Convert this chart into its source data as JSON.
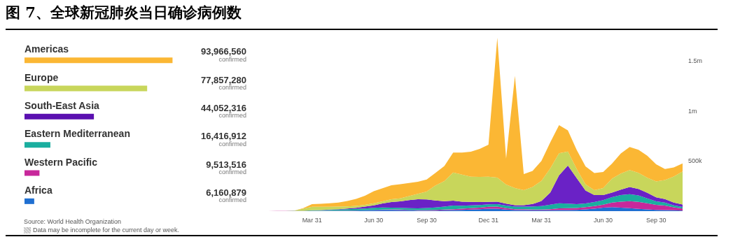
{
  "chart_data": [
    {
      "type": "bar",
      "title": "图 7、全球新冠肺炎当日确诊病例数",
      "orientation": "horizontal",
      "categories": [
        "Americas",
        "Europe",
        "South-East Asia",
        "Eastern Mediterranean",
        "Western Pacific",
        "Africa"
      ],
      "values": [
        93966560,
        77857280,
        44052316,
        16416912,
        9513516,
        6160879
      ],
      "colors": [
        "#fbb734",
        "#c8d65b",
        "#5a10b0",
        "#1aae9f",
        "#c7289b",
        "#1f6fd1"
      ],
      "value_labels": [
        "93,966,560\nconfirmed",
        "77,857,280\nconfirmed",
        "44,052,316\nconfirmed",
        "16,416,912\nconfirmed",
        "9,513,516\nconfirmed",
        "6,160,879\nconfirmed"
      ],
      "annotations": [
        "Source: World Health Organization",
        "Data may be incomplete for the current day or week."
      ]
    },
    {
      "type": "area",
      "stacked": true,
      "categories": [
        null,
        null,
        null,
        null,
        null,
        null,
        "Mar 31",
        null,
        null,
        null,
        null,
        null,
        null,
        "Jun 30",
        null,
        null,
        null,
        null,
        null,
        "Sep 30",
        null,
        null,
        null,
        null,
        null,
        null,
        "Dec 31",
        null,
        null,
        null,
        null,
        null,
        "Mar 31",
        null,
        null,
        null,
        null,
        null,
        null,
        "Jun 30",
        null,
        null,
        null,
        null,
        null,
        "Sep 30",
        null,
        null,
        null
      ],
      "series": [
        {
          "color": "#1f6fd1",
          "values": [
            0,
            0,
            0,
            0,
            0,
            0,
            1000,
            1000,
            2000,
            3000,
            4000,
            5000,
            8000,
            10000,
            12000,
            12000,
            11000,
            8000,
            6000,
            6000,
            6000,
            8000,
            10000,
            12000,
            15000,
            20000,
            25000,
            25000,
            15000,
            10000,
            10000,
            8000,
            8000,
            8000,
            10000,
            10000,
            12000,
            18000,
            25000,
            35000,
            40000,
            35000,
            30000,
            22000,
            18000,
            12000,
            10000,
            8000,
            6000
          ]
        },
        {
          "color": "#c7289b",
          "values": [
            0,
            0,
            1000,
            1000,
            1000,
            1000,
            2000,
            2000,
            2000,
            2000,
            2000,
            2000,
            2000,
            3000,
            4000,
            5000,
            5000,
            5000,
            5000,
            5000,
            6000,
            7000,
            10000,
            12000,
            15000,
            15000,
            18000,
            20000,
            15000,
            10000,
            10000,
            8000,
            8000,
            12000,
            18000,
            20000,
            20000,
            22000,
            25000,
            30000,
            45000,
            60000,
            70000,
            70000,
            60000,
            50000,
            45000,
            30000,
            20000
          ]
        },
        {
          "color": "#1aae9f",
          "values": [
            0,
            0,
            1000,
            1000,
            2000,
            3000,
            5000,
            6000,
            8000,
            10000,
            13000,
            15000,
            17000,
            20000,
            20000,
            18000,
            17000,
            17000,
            17000,
            20000,
            25000,
            30000,
            35000,
            30000,
            28000,
            26000,
            25000,
            25000,
            25000,
            25000,
            25000,
            30000,
            35000,
            45000,
            50000,
            45000,
            38000,
            36000,
            40000,
            45000,
            55000,
            65000,
            70000,
            65000,
            50000,
            35000,
            30000,
            20000,
            15000
          ]
        },
        {
          "color": "#6a22c6",
          "values": [
            0,
            0,
            0,
            0,
            0,
            0,
            1000,
            2000,
            4000,
            5000,
            8000,
            12000,
            18000,
            25000,
            40000,
            55000,
            65000,
            80000,
            90000,
            85000,
            70000,
            55000,
            50000,
            40000,
            35000,
            30000,
            25000,
            25000,
            20000,
            15000,
            15000,
            25000,
            50000,
            120000,
            280000,
            380000,
            260000,
            130000,
            70000,
            50000,
            45000,
            55000,
            70000,
            65000,
            55000,
            40000,
            35000,
            28000,
            25000
          ]
        },
        {
          "color": "#c8d65b",
          "values": [
            0,
            0,
            0,
            0,
            2000,
            20000,
            35000,
            33000,
            28000,
            25000,
            20000,
            18000,
            18000,
            20000,
            22000,
            28000,
            30000,
            40000,
            55000,
            80000,
            150000,
            200000,
            280000,
            270000,
            250000,
            250000,
            250000,
            240000,
            190000,
            170000,
            150000,
            170000,
            200000,
            240000,
            220000,
            140000,
            90000,
            60000,
            50000,
            70000,
            140000,
            160000,
            170000,
            160000,
            150000,
            160000,
            190000,
            260000,
            330000
          ]
        },
        {
          "color": "#fbb734",
          "values": [
            0,
            0,
            0,
            0,
            0,
            5000,
            25000,
            30000,
            35000,
            40000,
            55000,
            70000,
            90000,
            120000,
            130000,
            140000,
            140000,
            130000,
            120000,
            120000,
            125000,
            150000,
            200000,
            220000,
            250000,
            280000,
            320000,
            1395000,
            260000,
            1120000,
            160000,
            160000,
            200000,
            260000,
            280000,
            210000,
            190000,
            180000,
            170000,
            160000,
            150000,
            200000,
            230000,
            230000,
            220000,
            170000,
            110000,
            90000,
            80000
          ]
        }
      ],
      "ylim": [
        0,
        1800000
      ],
      "yticks": [
        {
          "value": 500000,
          "label": "500k"
        },
        {
          "value": 1000000,
          "label": "1m"
        },
        {
          "value": 1500000,
          "label": "1.5m"
        }
      ]
    }
  ]
}
